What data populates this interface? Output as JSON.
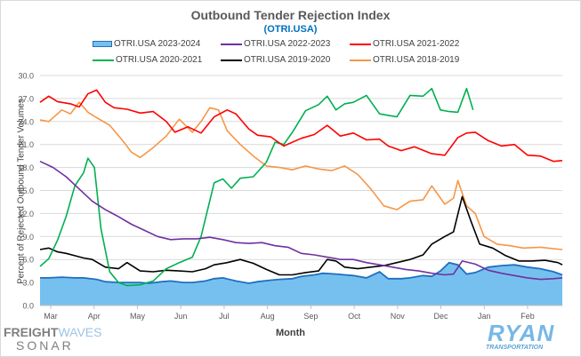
{
  "chart_data": {
    "type": "line",
    "title": "Outbound Tender Rejection Index",
    "subtitle": "(OTRI.USA)",
    "xlabel": "Month",
    "ylabel": "Percent of Rejected Outbound Tender Volumes",
    "ylim": [
      0,
      30
    ],
    "yticks": [
      "0.0",
      "3.0",
      "6.0",
      "9.0",
      "12.0",
      "15.0",
      "18.0",
      "21.0",
      "24.0",
      "27.0",
      "30.0"
    ],
    "ytick_values": [
      0,
      3,
      6,
      9,
      12,
      15,
      18,
      21,
      24,
      27,
      30
    ],
    "categories": [
      "Mar",
      "Apr",
      "May",
      "Jun",
      "Jul",
      "Aug",
      "Sep",
      "Oct",
      "Nov",
      "Dec",
      "Jan",
      "Feb"
    ],
    "x_range_months": [
      0,
      12
    ],
    "grid": true,
    "legend_position": "top",
    "series": [
      {
        "name": "OTRI.USA 2023-2024",
        "style": "area",
        "color": "#1f6fbf",
        "fill": "#76c0ef",
        "x": [
          0,
          0.2,
          0.5,
          0.8,
          1.0,
          1.3,
          1.5,
          1.8,
          2.0,
          2.3,
          2.5,
          2.8,
          3.0,
          3.3,
          3.5,
          3.8,
          4.0,
          4.2,
          4.5,
          4.8,
          5.0,
          5.3,
          5.5,
          5.8,
          6.0,
          6.3,
          6.5,
          6.8,
          7.0,
          7.2,
          7.5,
          7.8,
          8.0,
          8.3,
          8.5,
          8.8,
          9.0,
          9.2,
          9.4,
          9.6,
          9.8,
          10.0,
          10.3,
          10.6,
          10.9,
          11.2,
          11.5,
          11.8,
          12.0
        ],
        "values": [
          3.6,
          3.6,
          3.7,
          3.6,
          3.6,
          3.4,
          3.1,
          3.0,
          3.0,
          3.0,
          2.9,
          3.1,
          3.2,
          3.0,
          3.0,
          3.2,
          3.5,
          3.6,
          3.2,
          2.9,
          3.1,
          3.3,
          3.4,
          3.5,
          3.8,
          4.0,
          4.2,
          4.1,
          4.0,
          3.9,
          3.6,
          4.4,
          3.5,
          3.5,
          3.6,
          3.9,
          3.8,
          4.5,
          5.6,
          5.3,
          4.1,
          4.3,
          5.0,
          5.2,
          5.3,
          5.0,
          4.8,
          4.4,
          4.0
        ]
      },
      {
        "name": "OTRI.USA 2022-2023",
        "style": "line",
        "color": "#7030a0",
        "x": [
          0,
          0.3,
          0.6,
          0.9,
          1.2,
          1.5,
          1.8,
          2.1,
          2.4,
          2.7,
          3.0,
          3.3,
          3.6,
          3.9,
          4.2,
          4.5,
          4.8,
          5.1,
          5.4,
          5.7,
          6.0,
          6.3,
          6.6,
          6.9,
          7.2,
          7.5,
          7.8,
          8.1,
          8.4,
          8.7,
          9.0,
          9.3,
          9.5,
          9.7,
          10.0,
          10.3,
          10.6,
          10.9,
          11.2,
          11.5,
          11.8,
          12.0
        ],
        "values": [
          18.8,
          18.0,
          16.8,
          15.2,
          13.6,
          12.5,
          11.6,
          10.6,
          9.8,
          9.0,
          8.6,
          8.7,
          8.7,
          8.9,
          8.6,
          8.2,
          8.1,
          8.2,
          7.8,
          7.6,
          6.8,
          6.6,
          6.3,
          6.0,
          6.0,
          5.6,
          5.3,
          5.0,
          4.7,
          4.5,
          4.2,
          4.0,
          4.1,
          5.8,
          5.4,
          4.6,
          4.2,
          3.9,
          3.6,
          3.4,
          3.5,
          3.6
        ]
      },
      {
        "name": "OTRI.USA 2021-2022",
        "style": "line",
        "color": "#ff0000",
        "x": [
          0,
          0.2,
          0.4,
          0.7,
          0.9,
          1.1,
          1.3,
          1.5,
          1.7,
          2.0,
          2.3,
          2.6,
          2.9,
          3.1,
          3.4,
          3.7,
          4.0,
          4.3,
          4.5,
          4.8,
          5.0,
          5.3,
          5.6,
          6.0,
          6.3,
          6.6,
          6.9,
          7.2,
          7.5,
          7.8,
          8.0,
          8.3,
          8.6,
          9.0,
          9.3,
          9.6,
          9.8,
          10.0,
          10.3,
          10.6,
          10.9,
          11.2,
          11.5,
          11.8,
          12.0
        ],
        "values": [
          26.5,
          27.3,
          26.6,
          26.3,
          25.9,
          27.6,
          28.1,
          26.5,
          25.8,
          25.6,
          25.1,
          25.3,
          24.0,
          22.6,
          23.3,
          22.5,
          24.6,
          25.5,
          25.0,
          23.0,
          22.2,
          22.0,
          20.8,
          21.8,
          22.3,
          23.5,
          22.1,
          22.5,
          21.6,
          21.7,
          20.8,
          20.2,
          20.7,
          19.8,
          19.6,
          21.9,
          22.5,
          22.6,
          21.5,
          20.8,
          21.0,
          19.6,
          19.5,
          18.8,
          18.9
        ]
      },
      {
        "name": "OTRI.USA 2020-2021",
        "style": "line",
        "color": "#00b050",
        "x": [
          0,
          0.2,
          0.4,
          0.6,
          0.8,
          1.0,
          1.1,
          1.25,
          1.4,
          1.6,
          1.8,
          2.0,
          2.3,
          2.6,
          2.9,
          3.2,
          3.5,
          3.7,
          4.0,
          4.2,
          4.4,
          4.6,
          4.9,
          5.2,
          5.4,
          5.6,
          5.8,
          6.1,
          6.4,
          6.6,
          6.8,
          7.0,
          7.2,
          7.5,
          7.8,
          8.0,
          8.2,
          8.5,
          8.8,
          9.0,
          9.2,
          9.4,
          9.6,
          9.8,
          9.95
        ],
        "values": [
          5.1,
          6.1,
          8.5,
          11.6,
          15.6,
          17.3,
          19.2,
          18.0,
          10.0,
          4.4,
          3.0,
          2.6,
          2.7,
          3.2,
          4.8,
          5.6,
          6.3,
          9.0,
          16.0,
          16.5,
          15.3,
          16.6,
          16.8,
          18.7,
          21.3,
          21.0,
          22.6,
          25.4,
          26.2,
          27.3,
          25.5,
          26.3,
          26.5,
          27.4,
          25.0,
          24.8,
          24.6,
          27.4,
          27.3,
          28.3,
          25.5,
          25.3,
          25.2,
          28.3,
          25.5
        ]
      },
      {
        "name": "OTRI.USA 2019-2020",
        "style": "line",
        "color": "#000000",
        "x": [
          0,
          0.2,
          0.4,
          0.6,
          0.8,
          1.0,
          1.2,
          1.5,
          1.8,
          2.0,
          2.3,
          2.6,
          2.9,
          3.2,
          3.5,
          3.8,
          4.0,
          4.3,
          4.6,
          4.9,
          5.2,
          5.5,
          5.8,
          6.1,
          6.4,
          6.6,
          6.8,
          7.0,
          7.3,
          7.6,
          7.9,
          8.2,
          8.5,
          8.8,
          9.0,
          9.3,
          9.5,
          9.7,
          9.9,
          10.1,
          10.4,
          10.7,
          11.0,
          11.3,
          11.6,
          11.9,
          12.0
        ],
        "values": [
          7.3,
          7.5,
          7.0,
          6.8,
          6.5,
          6.2,
          6.0,
          5.0,
          4.8,
          5.6,
          4.5,
          4.4,
          4.6,
          4.5,
          4.4,
          4.8,
          5.3,
          5.6,
          6.0,
          5.5,
          4.7,
          4.0,
          4.0,
          4.3,
          4.5,
          6.0,
          5.8,
          5.0,
          4.8,
          5.0,
          5.2,
          5.6,
          6.0,
          6.6,
          8.0,
          9.0,
          9.6,
          14.2,
          11.0,
          8.0,
          7.5,
          6.5,
          5.8,
          5.8,
          5.9,
          5.6,
          5.3
        ]
      },
      {
        "name": "OTRI.USA 2018-2019",
        "style": "line",
        "color": "#f79646",
        "x": [
          0,
          0.2,
          0.5,
          0.7,
          0.9,
          1.1,
          1.3,
          1.6,
          1.9,
          2.1,
          2.3,
          2.6,
          2.9,
          3.2,
          3.5,
          3.7,
          3.9,
          4.1,
          4.3,
          4.6,
          4.9,
          5.2,
          5.5,
          5.8,
          6.1,
          6.4,
          6.7,
          7.0,
          7.3,
          7.6,
          7.9,
          8.2,
          8.5,
          8.8,
          9.0,
          9.3,
          9.5,
          9.6,
          9.8,
          10.0,
          10.2,
          10.5,
          10.8,
          11.1,
          11.5,
          11.8,
          12.0
        ],
        "values": [
          24.2,
          24.0,
          25.5,
          25.0,
          26.5,
          25.2,
          24.5,
          23.5,
          21.5,
          20.0,
          19.3,
          20.6,
          22.1,
          24.3,
          22.6,
          24.0,
          25.8,
          25.5,
          22.8,
          21.0,
          19.5,
          18.2,
          18.0,
          17.7,
          18.2,
          17.8,
          17.6,
          18.2,
          17.1,
          15.2,
          13.0,
          12.5,
          13.6,
          13.8,
          15.6,
          13.2,
          14.0,
          16.3,
          13.0,
          12.0,
          9.0,
          8.0,
          7.8,
          7.5,
          7.6,
          7.4,
          7.3
        ]
      }
    ]
  },
  "branding": {
    "left_logo_part1": "FREIGHT",
    "left_logo_part2": "WAVES",
    "left_logo_sub": "SONAR",
    "right_logo": "RYAN",
    "right_logo_sub": "TRANSPORTATION"
  }
}
